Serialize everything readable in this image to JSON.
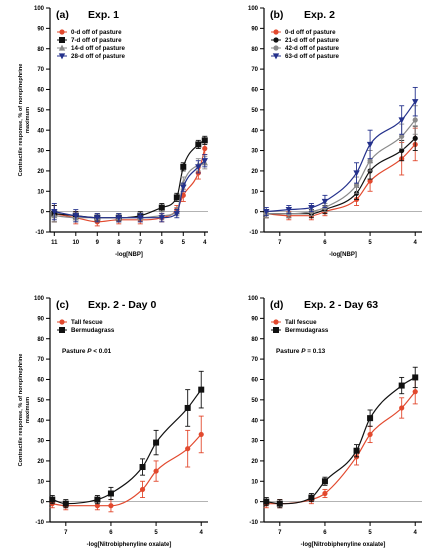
{
  "chart_data": [
    {
      "type": "line",
      "panel": "(a)",
      "title": "Exp. 1",
      "xlabel": "-log[NBP]",
      "ylabel": [
        "Contractile response, % of norepinephrine",
        "maximum"
      ],
      "xlim": [
        11.2,
        3.85
      ],
      "ylim": [
        -10,
        100
      ],
      "xticks": [
        11,
        10,
        9,
        8,
        7,
        6,
        5,
        4
      ],
      "yticks": [
        -10,
        0,
        10,
        20,
        30,
        40,
        50,
        60,
        70,
        80,
        90,
        100
      ],
      "legend_position": "top-left",
      "series": [
        {
          "name": "0-d off of pasture",
          "color": "#e2492e",
          "marker": "circle",
          "x": [
            11,
            10,
            9,
            8,
            7,
            6,
            5.3,
            5,
            4.3,
            4
          ],
          "y": [
            -1,
            -3,
            -5,
            -4,
            -4,
            -3,
            1,
            8,
            19,
            31
          ],
          "err": [
            4,
            3,
            2,
            2,
            2,
            2,
            2,
            3,
            3,
            3
          ]
        },
        {
          "name": "7-d off of pasture",
          "color": "#111111",
          "marker": "square",
          "x": [
            11,
            10,
            9,
            8,
            7,
            6,
            5.3,
            5,
            4.3,
            4
          ],
          "y": [
            -1,
            -2,
            -3,
            -3,
            -2,
            2,
            7,
            22,
            33,
            35
          ],
          "err": [
            4,
            2,
            2,
            2,
            2,
            2,
            2,
            2,
            2,
            2
          ]
        },
        {
          "name": "14-d off of pasture",
          "color": "#8a8a8a",
          "marker": "triangle",
          "x": [
            11,
            10,
            9,
            8,
            7,
            6,
            5.3,
            5,
            4.3,
            4
          ],
          "y": [
            -2,
            -3,
            -3,
            -3,
            -3,
            -2,
            0,
            14,
            23,
            24
          ],
          "err": [
            3,
            2,
            2,
            2,
            2,
            2,
            2,
            3,
            3,
            3
          ]
        },
        {
          "name": "28-d off of pasture",
          "color": "#24318c",
          "marker": "invtriangle",
          "x": [
            11,
            10,
            9,
            8,
            7,
            6,
            5.3,
            5,
            4.3,
            4
          ],
          "y": [
            0,
            -2,
            -3,
            -3,
            -3,
            -3,
            -1,
            12,
            22,
            25
          ],
          "err": [
            4,
            3,
            2,
            2,
            2,
            2,
            2,
            2,
            3,
            3
          ]
        }
      ]
    },
    {
      "type": "line",
      "panel": "(b)",
      "title": "Exp. 2",
      "xlabel": "-log[NBP]",
      "ylabel": "",
      "xlim": [
        7.35,
        3.85
      ],
      "ylim": [
        -10,
        100
      ],
      "xticks": [
        7,
        6,
        5,
        4
      ],
      "yticks": [
        -10,
        0,
        10,
        20,
        30,
        40,
        50,
        60,
        70,
        80,
        90,
        100
      ],
      "legend_position": "top-left",
      "series": [
        {
          "name": "0-d off of pasture",
          "color": "#e2492e",
          "marker": "circle",
          "x": [
            7.3,
            6.8,
            6.3,
            6,
            5.3,
            5,
            4.3,
            4
          ],
          "y": [
            -1,
            -2,
            -2,
            0,
            6,
            15,
            26,
            33
          ],
          "err": [
            2,
            2,
            2,
            2,
            3,
            5,
            8,
            8
          ]
        },
        {
          "name": "21-d off of pasture",
          "color": "#111111",
          "marker": "circle",
          "x": [
            7.3,
            6.8,
            6.3,
            6,
            5.3,
            5,
            4.3,
            4
          ],
          "y": [
            -1,
            -1,
            -1,
            1,
            9,
            20,
            30,
            36
          ],
          "err": [
            2,
            2,
            2,
            2,
            3,
            4,
            5,
            6
          ]
        },
        {
          "name": "42-d off of pasture",
          "color": "#8a8a8a",
          "marker": "circle",
          "x": [
            7.3,
            6.8,
            6.3,
            6,
            5.3,
            5,
            4.3,
            4
          ],
          "y": [
            -1,
            -1,
            0,
            2,
            13,
            25,
            37,
            45
          ],
          "err": [
            2,
            2,
            2,
            2,
            4,
            5,
            6,
            7
          ]
        },
        {
          "name": "63-d off of pasture",
          "color": "#24318c",
          "marker": "invtriangle",
          "x": [
            7.3,
            6.8,
            6.3,
            6,
            5.3,
            5,
            4.3,
            4
          ],
          "y": [
            0,
            1,
            2,
            5,
            19,
            33,
            45,
            54
          ],
          "err": [
            2,
            2,
            2,
            3,
            5,
            7,
            7,
            7
          ]
        }
      ]
    },
    {
      "type": "line",
      "panel": "(c)",
      "title": "Exp. 2 - Day 0",
      "xlabel": "-log[Nitrobiphenyline oxalate]",
      "ylabel": [
        "Contractile response, % of norepinephrine",
        "maximum"
      ],
      "xlim": [
        7.35,
        3.85
      ],
      "ylim": [
        -10,
        100
      ],
      "xticks": [
        7,
        6,
        5,
        4
      ],
      "yticks": [
        -10,
        0,
        10,
        20,
        30,
        40,
        50,
        60,
        70,
        80,
        90,
        100
      ],
      "legend_position": "top-left",
      "annotation": "Pasture P < 0.01",
      "series": [
        {
          "name": "Tall fescue",
          "color": "#e2492e",
          "marker": "circle",
          "x": [
            7.3,
            7,
            6.3,
            6,
            5.3,
            5,
            4.3,
            4
          ],
          "y": [
            -1,
            -2,
            -2,
            -2,
            6,
            15,
            26,
            33
          ],
          "err": [
            2,
            2,
            2,
            3,
            4,
            5,
            9,
            9
          ]
        },
        {
          "name": "Bermudagrass",
          "color": "#111111",
          "marker": "square",
          "x": [
            7.3,
            7,
            6.3,
            6,
            5.3,
            5,
            4.3,
            4
          ],
          "y": [
            1,
            -1,
            1,
            4,
            17,
            29,
            46,
            55
          ],
          "err": [
            2,
            2,
            2,
            3,
            4,
            6,
            9,
            9
          ]
        }
      ]
    },
    {
      "type": "line",
      "panel": "(d)",
      "title": "Exp. 2 - Day 63",
      "xlabel": "-log[Nitrobiphenyline oxalate]",
      "ylabel": "",
      "xlim": [
        7.35,
        3.85
      ],
      "ylim": [
        -10,
        100
      ],
      "xticks": [
        7,
        6,
        5,
        4
      ],
      "yticks": [
        -10,
        0,
        10,
        20,
        30,
        40,
        50,
        60,
        70,
        80,
        90,
        100
      ],
      "legend_position": "top-left",
      "annotation": "Pasture P = 0.13",
      "series": [
        {
          "name": "Tall fescue",
          "color": "#e2492e",
          "marker": "circle",
          "x": [
            7.3,
            7,
            6.3,
            6,
            5.3,
            5,
            4.3,
            4
          ],
          "y": [
            -1,
            -1,
            1,
            4,
            22,
            33,
            46,
            54
          ],
          "err": [
            2,
            2,
            2,
            2,
            4,
            4,
            5,
            6
          ]
        },
        {
          "name": "Bermudagrass",
          "color": "#111111",
          "marker": "square",
          "x": [
            7.3,
            7,
            6.3,
            6,
            5.3,
            5,
            4.3,
            4
          ],
          "y": [
            0,
            -1,
            2,
            10,
            25,
            41,
            57,
            61
          ],
          "err": [
            2,
            2,
            2,
            2,
            3,
            4,
            4,
            5
          ]
        }
      ]
    }
  ]
}
